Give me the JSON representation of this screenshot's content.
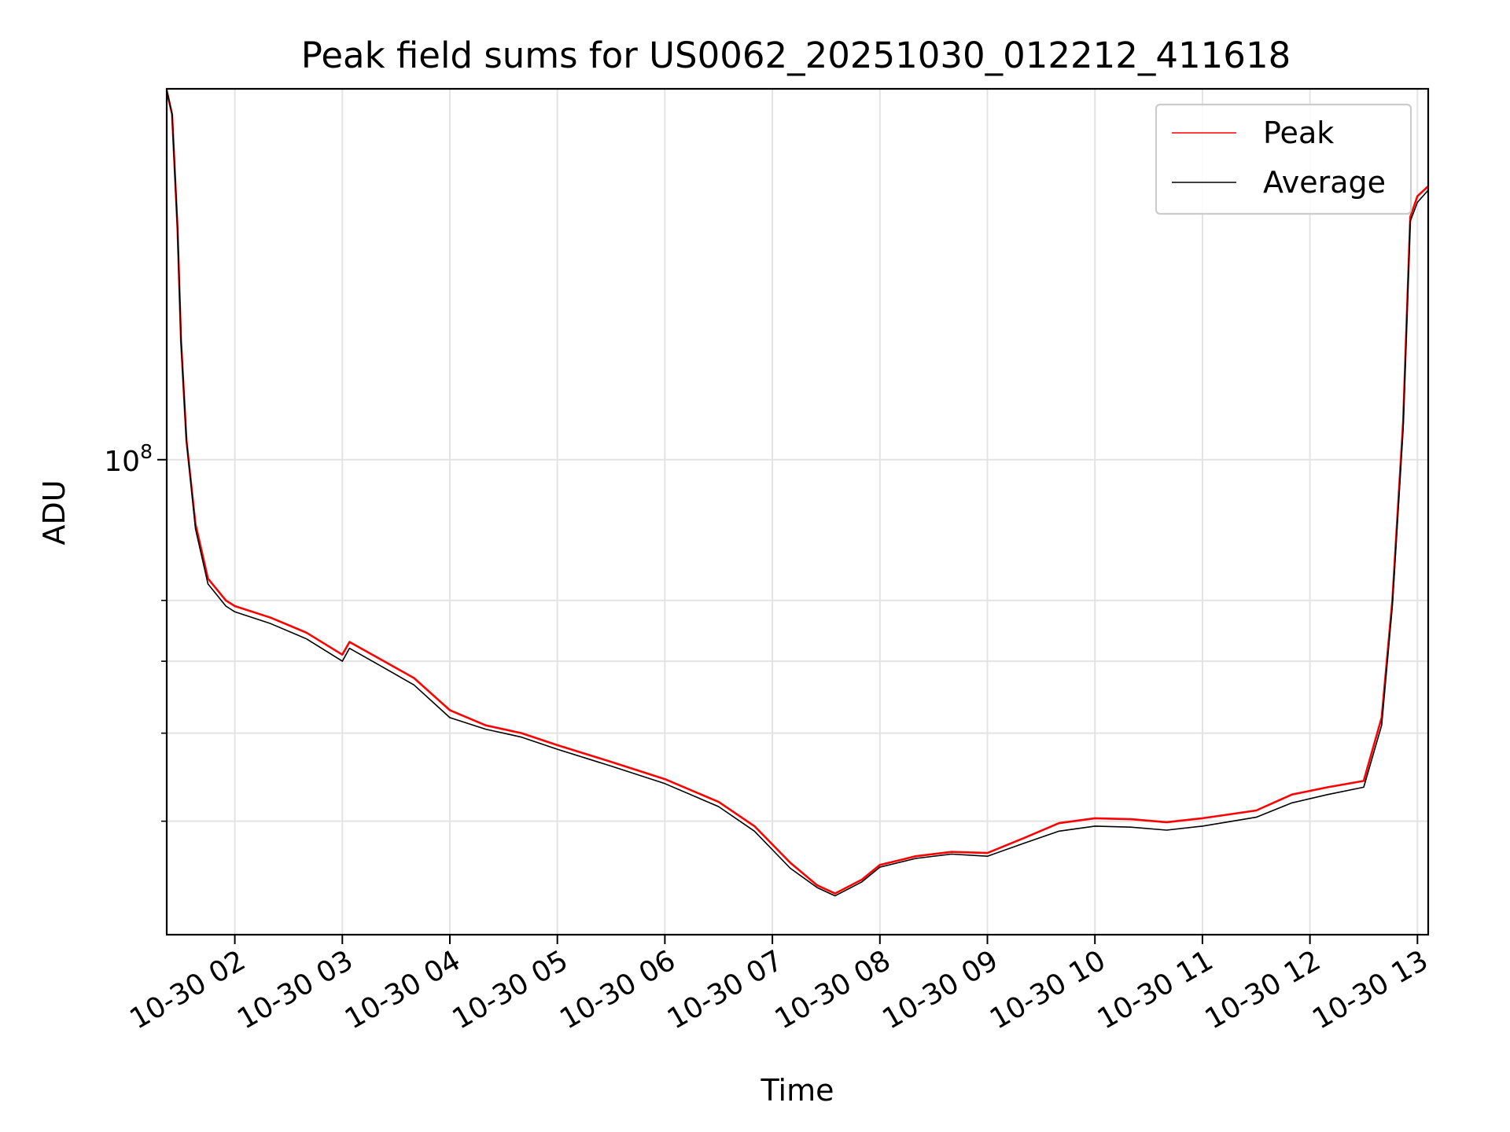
{
  "chart_data": {
    "type": "line",
    "title": "Peak field sums for US0062_20251030_012212_411618",
    "xlabel": "Time",
    "ylabel": "ADU",
    "x_axis": "datetime",
    "xlim": [
      "2025-10-30 01:22",
      "2025-10-30 13:06"
    ],
    "x_ticks": [
      "10-30 02",
      "10-30 03",
      "10-30 04",
      "10-30 05",
      "10-30 06",
      "10-30 07",
      "10-30 08",
      "10-30 09",
      "10-30 10",
      "10-30 11",
      "10-30 12",
      "10-30 13"
    ],
    "y_scale": "log",
    "ylim": [
      30000000,
      256000000
    ],
    "y_major_ticks": [
      {
        "value": 100000000,
        "base": "10",
        "exp": "8"
      }
    ],
    "y_minor_ticks": [
      40000000,
      50000000,
      60000000,
      70000000
    ],
    "grid": true,
    "legend_position": "top-right",
    "series": [
      {
        "name": "Peak",
        "color": "#ff0000",
        "points": [
          [
            "2025-10-30 01:22",
            255000000
          ],
          [
            "2025-10-30 01:25",
            240000000
          ],
          [
            "2025-10-30 01:28",
            180000000
          ],
          [
            "2025-10-30 01:30",
            135000000
          ],
          [
            "2025-10-30 01:33",
            105000000
          ],
          [
            "2025-10-30 01:38",
            85000000
          ],
          [
            "2025-10-30 01:45",
            74000000
          ],
          [
            "2025-10-30 01:55",
            70000000
          ],
          [
            "2025-10-30 02:00",
            69000000
          ],
          [
            "2025-10-30 02:20",
            67000000
          ],
          [
            "2025-10-30 02:40",
            64500000
          ],
          [
            "2025-10-30 03:00",
            61000000
          ],
          [
            "2025-10-30 03:04",
            63000000
          ],
          [
            "2025-10-30 03:20",
            60500000
          ],
          [
            "2025-10-30 03:40",
            57500000
          ],
          [
            "2025-10-30 04:00",
            53000000
          ],
          [
            "2025-10-30 04:20",
            51000000
          ],
          [
            "2025-10-30 04:40",
            50000000
          ],
          [
            "2025-10-30 05:00",
            48500000
          ],
          [
            "2025-10-30 05:30",
            46500000
          ],
          [
            "2025-10-30 06:00",
            44500000
          ],
          [
            "2025-10-30 06:30",
            42000000
          ],
          [
            "2025-10-30 06:50",
            39500000
          ],
          [
            "2025-10-30 07:10",
            36000000
          ],
          [
            "2025-10-30 07:25",
            34000000
          ],
          [
            "2025-10-30 07:35",
            33300000
          ],
          [
            "2025-10-30 07:50",
            34500000
          ],
          [
            "2025-10-30 08:00",
            35800000
          ],
          [
            "2025-10-30 08:20",
            36600000
          ],
          [
            "2025-10-30 08:40",
            37000000
          ],
          [
            "2025-10-30 09:00",
            36900000
          ],
          [
            "2025-10-30 09:20",
            38300000
          ],
          [
            "2025-10-30 09:40",
            39800000
          ],
          [
            "2025-10-30 10:00",
            40300000
          ],
          [
            "2025-10-30 10:20",
            40200000
          ],
          [
            "2025-10-30 10:40",
            39900000
          ],
          [
            "2025-10-30 11:00",
            40300000
          ],
          [
            "2025-10-30 11:30",
            41100000
          ],
          [
            "2025-10-30 11:50",
            42800000
          ],
          [
            "2025-10-30 12:10",
            43600000
          ],
          [
            "2025-10-30 12:30",
            44300000
          ],
          [
            "2025-10-30 12:40",
            52000000
          ],
          [
            "2025-10-30 12:46",
            70000000
          ],
          [
            "2025-10-30 12:52",
            110000000
          ],
          [
            "2025-10-30 12:56",
            185000000
          ],
          [
            "2025-10-30 13:00",
            195000000
          ],
          [
            "2025-10-30 13:06",
            200000000
          ]
        ]
      },
      {
        "name": "Average",
        "color": "#000000",
        "points": [
          [
            "2025-10-30 01:22",
            255000000
          ],
          [
            "2025-10-30 01:25",
            240000000
          ],
          [
            "2025-10-30 01:28",
            180000000
          ],
          [
            "2025-10-30 01:30",
            135000000
          ],
          [
            "2025-10-30 01:33",
            105000000
          ],
          [
            "2025-10-30 01:38",
            84000000
          ],
          [
            "2025-10-30 01:45",
            73000000
          ],
          [
            "2025-10-30 01:55",
            69000000
          ],
          [
            "2025-10-30 02:00",
            68000000
          ],
          [
            "2025-10-30 02:20",
            66000000
          ],
          [
            "2025-10-30 02:40",
            63500000
          ],
          [
            "2025-10-30 03:00",
            60000000
          ],
          [
            "2025-10-30 03:04",
            62000000
          ],
          [
            "2025-10-30 03:20",
            59500000
          ],
          [
            "2025-10-30 03:40",
            56500000
          ],
          [
            "2025-10-30 04:00",
            52000000
          ],
          [
            "2025-10-30 04:20",
            50500000
          ],
          [
            "2025-10-30 04:40",
            49500000
          ],
          [
            "2025-10-30 05:00",
            48000000
          ],
          [
            "2025-10-30 05:30",
            46000000
          ],
          [
            "2025-10-30 06:00",
            44000000
          ],
          [
            "2025-10-30 06:30",
            41500000
          ],
          [
            "2025-10-30 06:50",
            39000000
          ],
          [
            "2025-10-30 07:10",
            35500000
          ],
          [
            "2025-10-30 07:25",
            33800000
          ],
          [
            "2025-10-30 07:35",
            33100000
          ],
          [
            "2025-10-30 07:50",
            34300000
          ],
          [
            "2025-10-30 08:00",
            35600000
          ],
          [
            "2025-10-30 08:20",
            36400000
          ],
          [
            "2025-10-30 08:40",
            36800000
          ],
          [
            "2025-10-30 09:00",
            36600000
          ],
          [
            "2025-10-30 09:20",
            37800000
          ],
          [
            "2025-10-30 09:40",
            39000000
          ],
          [
            "2025-10-30 10:00",
            39500000
          ],
          [
            "2025-10-30 10:20",
            39400000
          ],
          [
            "2025-10-30 10:40",
            39100000
          ],
          [
            "2025-10-30 11:00",
            39500000
          ],
          [
            "2025-10-30 11:30",
            40400000
          ],
          [
            "2025-10-30 11:50",
            41900000
          ],
          [
            "2025-10-30 12:10",
            42800000
          ],
          [
            "2025-10-30 12:30",
            43600000
          ],
          [
            "2025-10-30 12:40",
            51000000
          ],
          [
            "2025-10-30 12:46",
            69000000
          ],
          [
            "2025-10-30 12:52",
            108000000
          ],
          [
            "2025-10-30 12:56",
            183000000
          ],
          [
            "2025-10-30 13:00",
            192000000
          ],
          [
            "2025-10-30 13:06",
            198000000
          ]
        ]
      }
    ]
  }
}
